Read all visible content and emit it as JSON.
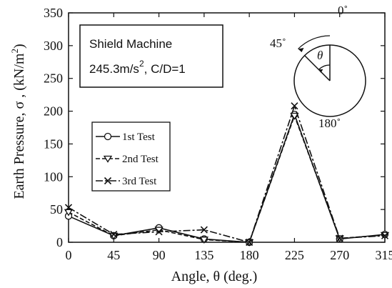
{
  "chart_data": {
    "type": "line",
    "xlabel": "Angle, θ (deg.)",
    "ylabel_parts": {
      "main": "Earth Pressure, σ , (kN/m",
      "sup": "2",
      "end": ")"
    },
    "xlim": [
      0,
      315
    ],
    "ylim": [
      0,
      350
    ],
    "x_ticks": [
      0,
      45,
      90,
      135,
      180,
      225,
      270,
      315
    ],
    "x_tick_labels": [
      "0",
      "45",
      "90",
      "135",
      "180",
      "225",
      "270",
      "315"
    ],
    "y_ticks": [
      0,
      50,
      100,
      150,
      200,
      250,
      300,
      350
    ],
    "y_tick_labels": [
      "0",
      "50",
      "100",
      "150",
      "200",
      "250",
      "300",
      "350"
    ],
    "grid": false,
    "legend_position": "center-left",
    "x": [
      0,
      45,
      90,
      135,
      180,
      225,
      270,
      315
    ],
    "series": [
      {
        "name": "1st Test",
        "marker": "circle",
        "dash": "solid",
        "values": [
          40,
          10,
          22,
          5,
          0,
          195,
          5,
          12
        ]
      },
      {
        "name": "2nd Test",
        "marker": "triangle",
        "dash": "dashed",
        "values": [
          46,
          10,
          19,
          4,
          0,
          193,
          6,
          11
        ]
      },
      {
        "name": "3rd Test",
        "marker": "cross",
        "dash": "dashdot",
        "values": [
          53,
          12,
          16,
          19,
          0,
          208,
          6,
          10
        ]
      }
    ],
    "annotation": {
      "line1": "Shield Machine",
      "line2_main": "245.3m/s",
      "line2_sup": "2",
      "line2_end": ", C/D=1"
    },
    "inset": {
      "label_top": "0˚",
      "label_45": "45˚",
      "label_bottom": "180˚",
      "theta": "θ"
    }
  }
}
